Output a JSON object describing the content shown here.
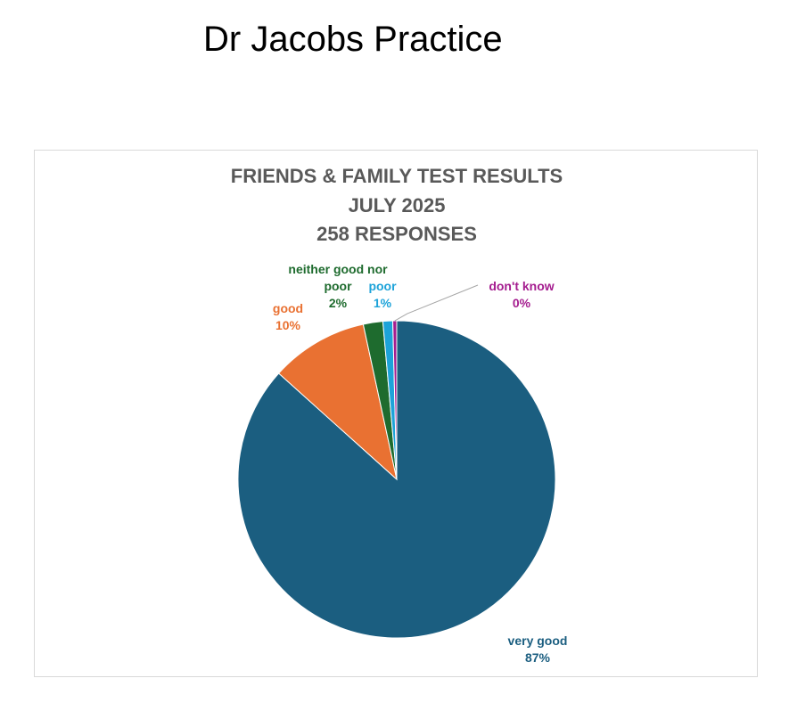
{
  "page": {
    "title": "Dr Jacobs Practice"
  },
  "chart_data": {
    "type": "pie",
    "title_lines": [
      "FRIENDS & FAMILY TEST RESULTS",
      "JULY 2025",
      "258 RESPONSES"
    ],
    "categories": [
      "very good",
      "good",
      "neither good nor poor",
      "poor",
      "don't know"
    ],
    "values": [
      87,
      10,
      2,
      1,
      0
    ],
    "display_percent": [
      "87%",
      "10%",
      "2%",
      "1%",
      "0%"
    ],
    "value_labels": [
      {
        "name_lines": [
          "very good"
        ],
        "percent": "87%"
      },
      {
        "name_lines": [
          "good"
        ],
        "percent": "10%"
      },
      {
        "name_lines": [
          "neither good nor",
          "poor"
        ],
        "percent": "2%"
      },
      {
        "name_lines": [
          "poor"
        ],
        "percent": "1%"
      },
      {
        "name_lines": [
          "don't know"
        ],
        "percent": "0%"
      }
    ],
    "colors": [
      "#1b5e80",
      "#e97132",
      "#1e6b2e",
      "#1da3d9",
      "#a51d8f"
    ],
    "start_angle": "12 o'clock",
    "direction": "clockwise",
    "legend": "none"
  }
}
